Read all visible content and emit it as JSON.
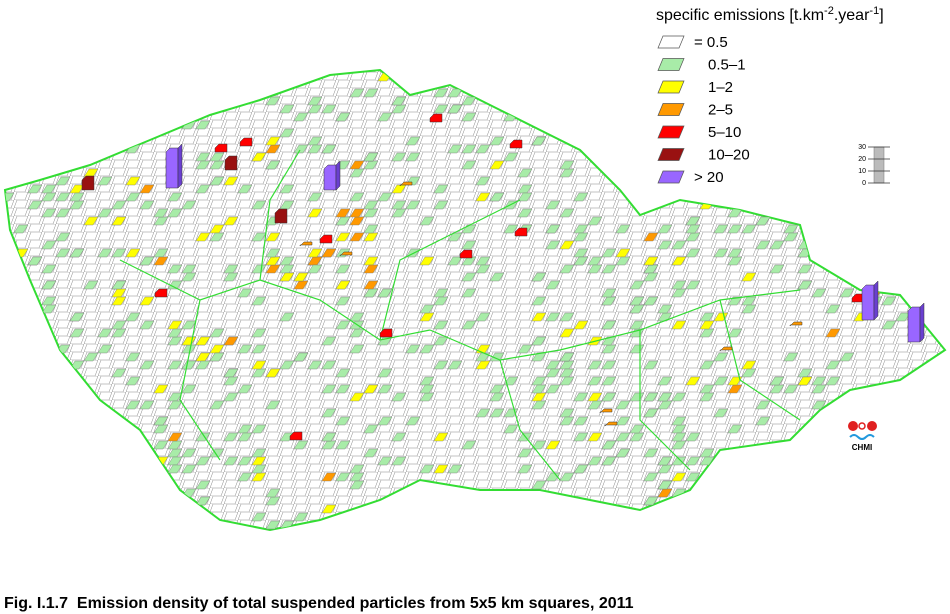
{
  "legend": {
    "title": {
      "text1": "specific emissions [t.km",
      "exp1": "-2",
      "text2": ".year",
      "exp2": "-1",
      "text3": "]"
    },
    "items": [
      {
        "label": "= 0.5",
        "color": "#ffffff"
      },
      {
        "label": "0.5–1",
        "color": "#a8eca8"
      },
      {
        "label": "1–2",
        "color": "#ffff00"
      },
      {
        "label": "2–5",
        "color": "#ff9900"
      },
      {
        "label": "5–10",
        "color": "#ff0000"
      },
      {
        "label": "10–20",
        "color": "#991111"
      },
      {
        "label": "> 20",
        "color": "#9966ff"
      }
    ]
  },
  "scale": {
    "ticks": [
      30,
      20,
      10,
      0
    ],
    "max": 30
  },
  "logo": {
    "text": "CHMI"
  },
  "caption": "Fig. I.1.7  Emission density of total suspended particles from 5x5 km squares, 2011"
}
